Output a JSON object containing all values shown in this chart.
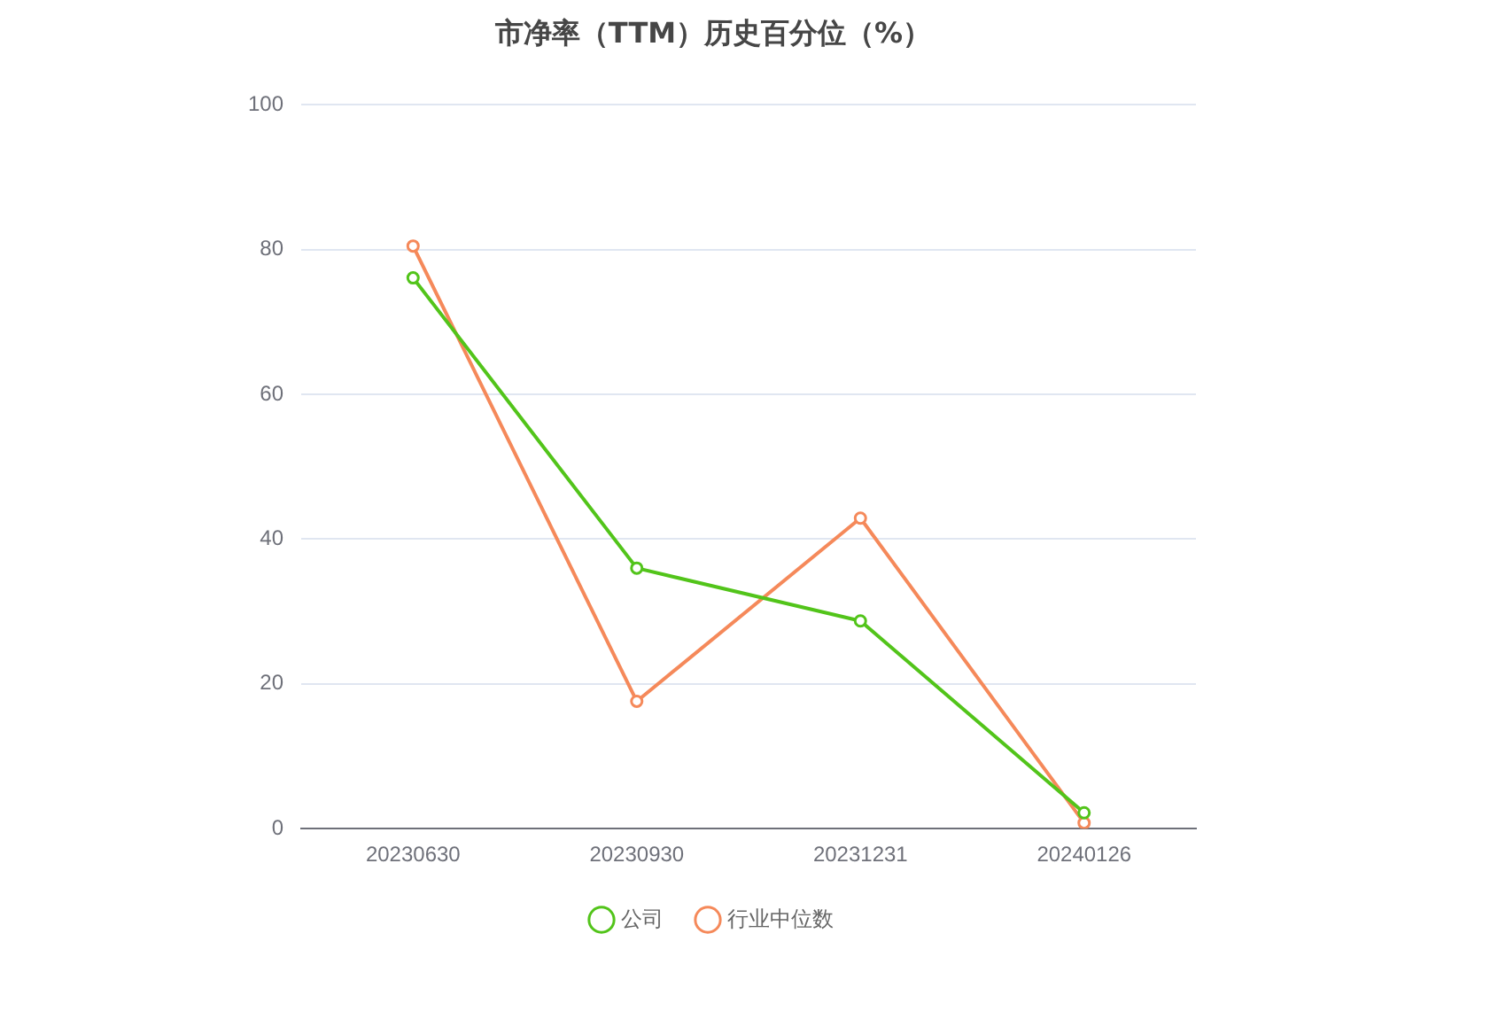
{
  "chart_data": {
    "type": "line",
    "title": "市净率（TTM）历史百分位（%）",
    "categories": [
      "20230630",
      "20230930",
      "20231231",
      "20240126"
    ],
    "series": [
      {
        "name": "公司",
        "color": "#52c41a",
        "values": [
          76.1,
          36,
          28.7,
          2.2
        ]
      },
      {
        "name": "行业中位数",
        "color": "#f5895a",
        "values": [
          80.5,
          17.6,
          42.9,
          0.8
        ]
      }
    ],
    "ylim": [
      0,
      100
    ],
    "yticks": [
      0,
      20,
      40,
      60,
      80,
      100
    ],
    "grid": "y",
    "legend": "bottom",
    "marker": "circle",
    "line_style": "solid"
  }
}
